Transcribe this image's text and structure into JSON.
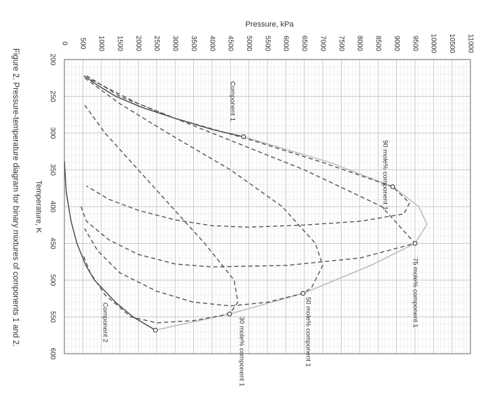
{
  "chart_data": {
    "type": "line",
    "title": "Pressure, kPa",
    "xlabel": "Temperature, K",
    "caption": "Figure 2. Pressure-temperature diagram for binary mixtures of components 1 and 2.",
    "xlim": [
      200,
      600
    ],
    "xticks": [
      200,
      250,
      300,
      350,
      400,
      450,
      500,
      550,
      600
    ],
    "ylim": [
      0,
      11000
    ],
    "yticks": [
      0,
      500,
      1000,
      1500,
      2000,
      2500,
      3000,
      3500,
      4000,
      4500,
      5000,
      5500,
      6000,
      6500,
      7000,
      7500,
      8000,
      8500,
      9000,
      9500,
      10000,
      10500,
      11000
    ],
    "grid": true,
    "minor_grid": true,
    "series": [
      {
        "name": "Component 1",
        "color": "#444444",
        "dash": "solid",
        "x": [
          222,
          235,
          250,
          265,
          280,
          295,
          305
        ],
        "values": [
          530,
          900,
          1390,
          2100,
          3000,
          4000,
          4855
        ]
      },
      {
        "name": "Component 2",
        "color": "#444444",
        "dash": "solid",
        "x": [
          338,
          380,
          420,
          450,
          480,
          500,
          530,
          550,
          568
        ],
        "values": [
          0,
          50,
          180,
          340,
          580,
          815,
          1385,
          1860,
          2465
        ]
      },
      {
        "color": "#b5b5b5",
        "dash": "solid",
        "x": [
          305,
          340,
          373,
          400,
          424,
          450,
          480,
          518,
          546,
          568
        ],
        "values": [
          4855,
          7200,
          8894,
          9600,
          9825,
          9500,
          8300,
          6467,
          4475,
          2465
        ]
      },
      {
        "name": "90 mole% component 1",
        "color": "#555555",
        "dash": "dashed",
        "x": [
          222,
          250,
          280,
          310,
          340,
          373,
          395,
          410,
          420,
          425,
          428,
          426,
          418,
          405,
          390,
          372
        ],
        "values": [
          600,
          1500,
          3000,
          5100,
          7000,
          8894,
          9350,
          9200,
          8000,
          6500,
          5000,
          4000,
          3000,
          2000,
          1200,
          600
        ]
      },
      {
        "name": "75 mole% component 1",
        "color": "#555555",
        "dash": "dashed",
        "x": [
          223,
          260,
          300,
          350,
          400,
          450,
          470,
          480,
          482,
          478,
          465,
          445,
          420,
          400
        ],
        "values": [
          550,
          2000,
          4000,
          6500,
          8600,
          9500,
          8000,
          6000,
          4000,
          3000,
          2000,
          1200,
          600,
          450
        ]
      },
      {
        "name": "50 mole% component 1",
        "color": "#555555",
        "dash": "dashed",
        "x": [
          225,
          260,
          300,
          350,
          400,
          450,
          480,
          510,
          518,
          530,
          535,
          530,
          515,
          490,
          460,
          430
        ],
        "values": [
          550,
          1500,
          2800,
          4500,
          5900,
          6800,
          7000,
          6700,
          6467,
          5500,
          4500,
          3500,
          2500,
          1500,
          900,
          550
        ]
      },
      {
        "name": "30 mole% component 1",
        "color": "#555555",
        "dash": "dashed",
        "x": [
          262,
          300,
          350,
          400,
          450,
          500,
          530,
          546,
          555,
          558,
          550,
          520,
          490,
          465
        ],
        "values": [
          550,
          1100,
          2000,
          2900,
          3800,
          4600,
          4700,
          4475,
          3500,
          2500,
          1800,
          1100,
          700,
          500
        ]
      }
    ],
    "critical_points": {
      "color": "#444444",
      "x": [
        305,
        373,
        450,
        518,
        546,
        568
      ],
      "values": [
        4855,
        8894,
        9500,
        6467,
        4475,
        2465
      ]
    }
  }
}
